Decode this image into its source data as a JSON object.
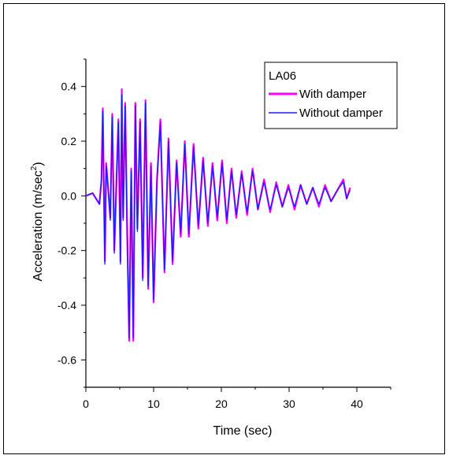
{
  "chart_data": {
    "type": "line",
    "title": "",
    "xlabel": "Time (sec)",
    "ylabel": "Acceleration (m/sec",
    "ylabel_superscript": "2",
    "ylabel_close": ")",
    "xlim": [
      0,
      45
    ],
    "ylim": [
      -0.7,
      0.5
    ],
    "xticks": [
      "0",
      "10",
      "20",
      "30",
      "40"
    ],
    "yticks": [
      "0.4",
      "0.2",
      "0.0",
      "-0.2",
      "-0.4",
      "-0.6"
    ],
    "grid": false,
    "legend": {
      "placement": "top-right",
      "title": "LA06"
    },
    "series": [
      {
        "name": "With damper",
        "color": "#ff00ff",
        "x": [
          0,
          1,
          2,
          2.3,
          2.5,
          2.8,
          3.0,
          3.3,
          3.6,
          3.9,
          4.2,
          4.5,
          4.8,
          5.1,
          5.3,
          5.5,
          5.8,
          6.1,
          6.4,
          6.7,
          7.0,
          7.3,
          7.6,
          8.0,
          8.4,
          8.8,
          9.2,
          9.6,
          10.0,
          10.5,
          11.0,
          11.6,
          12.2,
          12.8,
          13.4,
          14.0,
          14.6,
          15.2,
          15.9,
          16.6,
          17.3,
          18.0,
          18.7,
          19.4,
          20.1,
          20.8,
          21.5,
          22.2,
          23.0,
          23.8,
          24.6,
          25.4,
          26.3,
          27.2,
          28.1,
          29.0,
          29.9,
          30.8,
          31.7,
          32.6,
          33.5,
          34.4,
          35.3,
          36.2,
          37.1,
          38.0,
          38.5,
          39.0
        ],
        "y": [
          0.0,
          0.01,
          -0.03,
          0.06,
          0.32,
          -0.24,
          0.12,
          0.02,
          -0.08,
          0.3,
          -0.2,
          0.04,
          0.28,
          -0.24,
          0.39,
          -0.08,
          0.34,
          -0.14,
          -0.53,
          0.1,
          -0.53,
          0.34,
          -0.12,
          0.28,
          -0.3,
          0.35,
          -0.34,
          0.12,
          -0.39,
          0.06,
          0.28,
          -0.28,
          0.21,
          -0.25,
          0.13,
          -0.15,
          0.2,
          -0.15,
          0.19,
          -0.12,
          0.14,
          -0.11,
          0.12,
          -0.09,
          0.13,
          -0.1,
          0.1,
          -0.08,
          0.09,
          -0.07,
          0.1,
          -0.05,
          0.06,
          -0.06,
          0.05,
          -0.04,
          0.04,
          -0.05,
          0.04,
          -0.03,
          0.03,
          -0.04,
          0.04,
          -0.02,
          0.02,
          0.06,
          -0.01,
          0.03
        ]
      },
      {
        "name": "Without damper",
        "color": "#1a1aff",
        "x": [
          0,
          1,
          2,
          2.3,
          2.5,
          2.8,
          3.0,
          3.3,
          3.6,
          3.9,
          4.2,
          4.5,
          4.8,
          5.1,
          5.3,
          5.5,
          5.8,
          6.1,
          6.4,
          6.7,
          7.0,
          7.3,
          7.6,
          8.0,
          8.4,
          8.8,
          9.2,
          9.6,
          10.0,
          10.5,
          11.0,
          11.6,
          12.2,
          12.8,
          13.4,
          14.0,
          14.6,
          15.2,
          15.9,
          16.6,
          17.3,
          18.0,
          18.7,
          19.4,
          20.1,
          20.8,
          21.5,
          22.2,
          23.0,
          23.8,
          24.6,
          25.4,
          26.3,
          27.2,
          28.1,
          29.0,
          29.9,
          30.8,
          31.7,
          32.6,
          33.5,
          34.4,
          35.3,
          36.2,
          37.1,
          38.0,
          38.5,
          39.0
        ],
        "y": [
          0.0,
          0.01,
          -0.03,
          0.05,
          0.31,
          -0.25,
          0.11,
          0.03,
          -0.09,
          0.29,
          -0.21,
          0.05,
          0.27,
          -0.25,
          0.37,
          -0.09,
          0.33,
          -0.15,
          -0.52,
          0.09,
          -0.52,
          0.33,
          -0.13,
          0.27,
          -0.31,
          0.34,
          -0.33,
          0.11,
          -0.38,
          0.05,
          0.27,
          -0.27,
          0.2,
          -0.24,
          0.12,
          -0.14,
          0.19,
          -0.14,
          0.18,
          -0.11,
          0.13,
          -0.1,
          0.11,
          -0.08,
          0.12,
          -0.09,
          0.09,
          -0.07,
          0.08,
          -0.06,
          0.09,
          -0.05,
          0.05,
          -0.05,
          0.04,
          -0.04,
          0.03,
          -0.04,
          0.04,
          -0.03,
          0.03,
          -0.03,
          0.03,
          -0.02,
          0.02,
          0.05,
          -0.01,
          0.02
        ]
      }
    ]
  }
}
